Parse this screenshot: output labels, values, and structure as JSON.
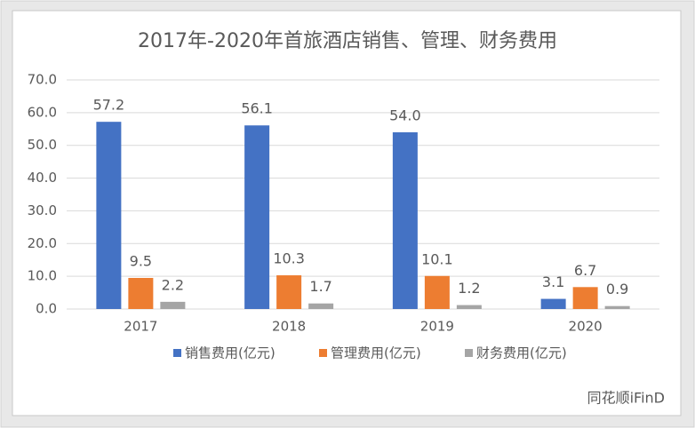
{
  "chart_data": {
    "type": "bar",
    "title": "2017年-2020年首旅酒店销售、管理、财务费用",
    "categories": [
      "2017",
      "2018",
      "2019",
      "2020"
    ],
    "series": [
      {
        "name": "销售费用(亿元)",
        "color": "#4472c4",
        "values": [
          57.2,
          56.1,
          54.0,
          3.1
        ],
        "value_labels": [
          "57.2",
          "56.1",
          "54.0",
          "3.1"
        ]
      },
      {
        "name": "管理费用(亿元)",
        "color": "#ed7d31",
        "values": [
          9.5,
          10.3,
          10.1,
          6.7
        ]
      },
      {
        "name": "财务费用(亿元)",
        "color": "#a5a5a5",
        "values": [
          2.2,
          1.7,
          1.2,
          0.9
        ]
      }
    ],
    "ylim": [
      0,
      70
    ],
    "yticks": [
      {
        "value": 0,
        "label": "0.0"
      },
      {
        "value": 10,
        "label": "10.0"
      },
      {
        "value": 20,
        "label": "20.0"
      },
      {
        "value": 30,
        "label": "30.0"
      },
      {
        "value": 40,
        "label": "40.0"
      },
      {
        "value": 50,
        "label": "50.0"
      },
      {
        "value": 60,
        "label": "60.0"
      },
      {
        "value": 70,
        "label": "70.0"
      }
    ],
    "grid": true,
    "legend": "bottom",
    "source": "同花顺iFinD"
  }
}
